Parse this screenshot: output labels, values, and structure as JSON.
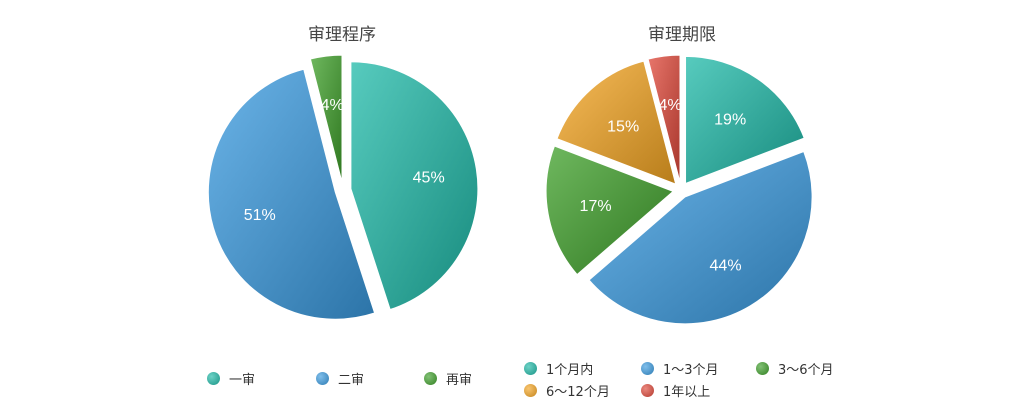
{
  "chart_data": [
    {
      "type": "pie",
      "title": "审理程序",
      "slices": [
        {
          "label": "一审",
          "value": 45,
          "label_text": "45%",
          "color": "#1fb9a8"
        },
        {
          "label": "二审",
          "value": 51,
          "label_text": "51%",
          "color": "#3a9be0"
        },
        {
          "label": "再审",
          "value": 4,
          "label_text": "4%",
          "color": "#3fa02a"
        }
      ],
      "legend": {
        "placement": "bottom"
      }
    },
    {
      "type": "pie",
      "title": "审理期限",
      "slices": [
        {
          "label": "1个月内",
          "value": 19,
          "label_text": "19%",
          "color": "#1fb9a8"
        },
        {
          "label": "1～3个月",
          "value": 44,
          "label_text": "44%",
          "color": "#3a9be0"
        },
        {
          "label": "3～6个月",
          "value": 17,
          "label_text": "17%",
          "color": "#3fa02a"
        },
        {
          "label": "6～12个月",
          "value": 15,
          "label_text": "15%",
          "color": "#f5a623"
        },
        {
          "label": "1年以上",
          "value": 4,
          "label_text": "4%",
          "color": "#e0483a"
        }
      ],
      "legend": {
        "placement": "bottom"
      }
    }
  ]
}
